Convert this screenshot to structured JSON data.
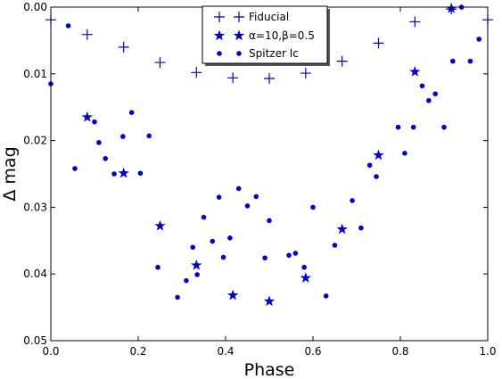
{
  "chart_data": {
    "type": "scatter",
    "xlabel": "Phase",
    "ylabel": "Δ mag",
    "xlim": [
      0.0,
      1.0
    ],
    "ylim": [
      0.05,
      0.0
    ],
    "y_inverted": true,
    "x_ticks": [
      "0.0",
      "0.2",
      "0.4",
      "0.6",
      "0.8",
      "1.0"
    ],
    "x_tick_values": [
      0.0,
      0.2,
      0.4,
      0.6,
      0.8,
      1.0
    ],
    "y_ticks": [
      "0.00",
      "0.01",
      "0.02",
      "0.03",
      "0.04",
      "0.05"
    ],
    "y_tick_values": [
      0.0,
      0.01,
      0.02,
      0.03,
      0.04,
      0.05
    ],
    "grid": false,
    "legend_position": "top-center",
    "color": "#0000cc",
    "series": [
      {
        "name": "Fiducial",
        "marker": "plus",
        "x": [
          0.0,
          0.0833,
          0.1667,
          0.25,
          0.3333,
          0.4167,
          0.5,
          0.5833,
          0.6667,
          0.75,
          0.8333,
          0.9167,
          1.0
        ],
        "y": [
          0.0019,
          0.0041,
          0.006,
          0.0083,
          0.0098,
          0.0106,
          0.0107,
          0.0099,
          0.0081,
          0.0054,
          0.0022,
          0.0003,
          0.0019
        ]
      },
      {
        "name": "α=10,β=0.5",
        "marker": "star",
        "x": [
          0.0833,
          0.1667,
          0.25,
          0.3333,
          0.4167,
          0.5,
          0.5833,
          0.6667,
          0.75,
          0.8333,
          0.9167
        ],
        "y": [
          0.0165,
          0.0249,
          0.0328,
          0.0387,
          0.0432,
          0.0441,
          0.0406,
          0.0333,
          0.0222,
          0.0097,
          0.0002
        ]
      },
      {
        "name": "Spitzer Ic",
        "marker": "circle",
        "x": [
          0.0,
          0.04,
          0.055,
          0.1,
          0.11,
          0.125,
          0.145,
          0.165,
          0.185,
          0.205,
          0.225,
          0.245,
          0.29,
          0.31,
          0.325,
          0.335,
          0.35,
          0.37,
          0.385,
          0.395,
          0.41,
          0.43,
          0.45,
          0.47,
          0.49,
          0.5,
          0.545,
          0.56,
          0.58,
          0.6,
          0.63,
          0.65,
          0.69,
          0.71,
          0.73,
          0.745,
          0.795,
          0.81,
          0.83,
          0.85,
          0.865,
          0.88,
          0.9,
          0.92,
          0.94,
          0.96,
          0.98
        ],
        "y": [
          0.0115,
          0.0028,
          0.0242,
          0.0172,
          0.0203,
          0.0227,
          0.025,
          0.0194,
          0.0158,
          0.0249,
          0.0193,
          0.039,
          0.0435,
          0.041,
          0.036,
          0.0401,
          0.0315,
          0.0351,
          0.0285,
          0.0375,
          0.0346,
          0.0272,
          0.0298,
          0.0284,
          0.0376,
          0.032,
          0.0372,
          0.0369,
          0.039,
          0.03,
          0.0433,
          0.0357,
          0.029,
          0.0331,
          0.0237,
          0.0254,
          0.018,
          0.0219,
          0.018,
          0.0118,
          0.014,
          0.013,
          0.018,
          0.0081,
          0.0,
          0.0081,
          0.0048
        ]
      }
    ]
  }
}
